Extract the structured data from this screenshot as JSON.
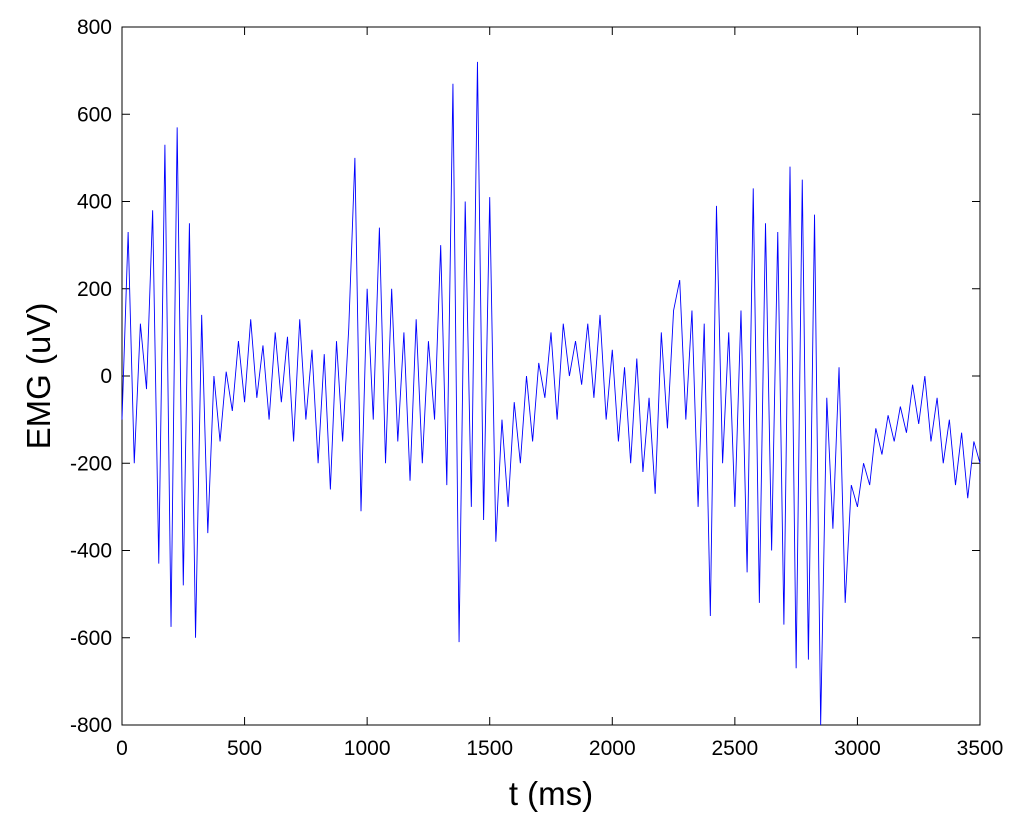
{
  "chart_data": {
    "type": "line",
    "xlabel": "t (ms)",
    "ylabel": "EMG (uV)",
    "color": "#0000ff",
    "x": [
      0,
      25,
      50,
      75,
      100,
      125,
      150,
      175,
      200,
      225,
      250,
      275,
      300,
      325,
      350,
      375,
      400,
      425,
      450,
      475,
      500,
      525,
      550,
      575,
      600,
      625,
      650,
      675,
      700,
      725,
      750,
      775,
      800,
      825,
      850,
      875,
      900,
      925,
      950,
      975,
      1000,
      1025,
      1050,
      1075,
      1100,
      1125,
      1150,
      1175,
      1200,
      1225,
      1250,
      1275,
      1300,
      1325,
      1350,
      1375,
      1400,
      1425,
      1450,
      1475,
      1500,
      1525,
      1550,
      1575,
      1600,
      1625,
      1650,
      1675,
      1700,
      1725,
      1750,
      1775,
      1800,
      1825,
      1850,
      1875,
      1900,
      1925,
      1950,
      1975,
      2000,
      2025,
      2050,
      2075,
      2100,
      2125,
      2150,
      2175,
      2200,
      2225,
      2250,
      2275,
      2300,
      2325,
      2350,
      2375,
      2400,
      2425,
      2450,
      2475,
      2500,
      2525,
      2550,
      2575,
      2600,
      2625,
      2650,
      2675,
      2700,
      2725,
      2750,
      2775,
      2800,
      2825,
      2850,
      2875,
      2900,
      2925,
      2950,
      2975,
      3000,
      3025,
      3050,
      3075,
      3100,
      3125,
      3150,
      3175,
      3200,
      3225,
      3250,
      3275,
      3300,
      3325,
      3350,
      3375,
      3400,
      3425,
      3450,
      3475,
      3500
    ],
    "values": [
      -100,
      330,
      -200,
      120,
      -30,
      380,
      -430,
      530,
      -575,
      570,
      -480,
      350,
      -600,
      140,
      -360,
      0,
      -150,
      10,
      -80,
      80,
      -60,
      130,
      -50,
      70,
      -100,
      100,
      -60,
      90,
      -150,
      130,
      -100,
      60,
      -200,
      50,
      -260,
      80,
      -150,
      110,
      500,
      -310,
      200,
      -100,
      340,
      -200,
      200,
      -150,
      100,
      -240,
      130,
      -200,
      80,
      -100,
      300,
      -250,
      670,
      -610,
      400,
      -300,
      720,
      -330,
      410,
      -380,
      -100,
      -300,
      -60,
      -200,
      0,
      -150,
      30,
      -50,
      100,
      -100,
      120,
      0,
      80,
      -20,
      120,
      -50,
      140,
      -100,
      60,
      -150,
      20,
      -200,
      40,
      -220,
      -50,
      -270,
      100,
      -120,
      150,
      220,
      -100,
      150,
      -300,
      120,
      -550,
      390,
      -200,
      100,
      -300,
      150,
      -450,
      430,
      -520,
      350,
      -400,
      330,
      -570,
      480,
      -670,
      450,
      -650,
      370,
      -800,
      -50,
      -350,
      20,
      -520,
      -250,
      -300,
      -200,
      -250,
      -120,
      -180,
      -90,
      -150,
      -70,
      -130,
      -20,
      -110,
      0,
      -150,
      -50,
      -200,
      -100,
      -250,
      -130,
      -280,
      -150,
      -200
    ],
    "xlim": [
      0,
      3500
    ],
    "ylim": [
      -800,
      800
    ],
    "xticks": [
      0,
      500,
      1000,
      1500,
      2000,
      2500,
      3000,
      3500
    ],
    "yticks": [
      -800,
      -600,
      -400,
      -200,
      0,
      200,
      400,
      600,
      800
    ]
  }
}
